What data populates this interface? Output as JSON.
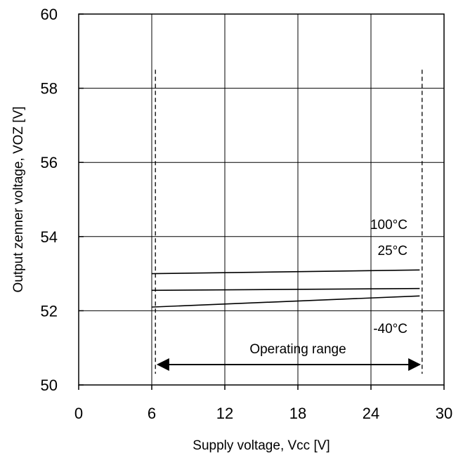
{
  "chart_data": {
    "type": "line",
    "title": "",
    "xlabel": "Supply voltage, Vcc [V]",
    "ylabel": "Output zenner voltage, VOZ [V]",
    "xlim": [
      0,
      30
    ],
    "ylim": [
      50,
      60
    ],
    "xticks": [
      0,
      6,
      12,
      18,
      24,
      30
    ],
    "yticks": [
      50,
      52,
      54,
      56,
      58,
      60
    ],
    "grid": true,
    "series": [
      {
        "name": "100°C",
        "x": [
          6,
          28
        ],
        "y": [
          53.0,
          53.1
        ],
        "label_at": [
          27,
          54.2
        ]
      },
      {
        "name": "25°C",
        "x": [
          6,
          28
        ],
        "y": [
          52.55,
          52.6
        ],
        "label_at": [
          27,
          53.5
        ]
      },
      {
        "name": "-40°C",
        "x": [
          6,
          28
        ],
        "y": [
          52.1,
          52.4
        ],
        "label_at": [
          27,
          51.4
        ]
      }
    ],
    "range_markers": {
      "x": [
        6.3,
        28.2
      ],
      "y_top": 58.5,
      "y_bottom": 50.3
    },
    "range_arrow": {
      "label": "Operating range",
      "x_start": 6.5,
      "x_end": 28,
      "y": 50.55,
      "label_at": [
        18,
        50.85
      ]
    }
  }
}
